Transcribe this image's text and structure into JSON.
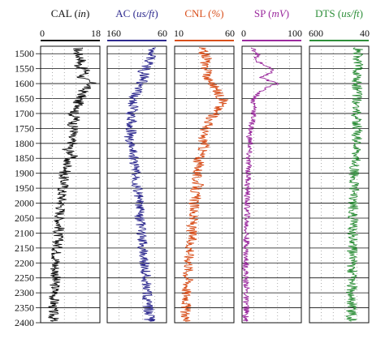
{
  "chart_data": {
    "type": "line",
    "y_axis": {
      "range": [
        2400,
        1475
      ],
      "ticks": [
        1500,
        1550,
        1600,
        1650,
        1700,
        1750,
        1800,
        1850,
        1900,
        1950,
        2000,
        2050,
        2100,
        2150,
        2200,
        2250,
        2300,
        2350,
        2400
      ],
      "grid": true
    },
    "tracks": [
      {
        "title": "CAL",
        "unit": "in",
        "color": "#111111",
        "scale_left": "0",
        "scale_right": "18",
        "left_value": 0,
        "right_value": 18
      },
      {
        "title": "AC",
        "unit": "us/ft",
        "color": "#2e2a8f",
        "scale_left": "160",
        "scale_right": "60",
        "left_value": 160,
        "right_value": 60
      },
      {
        "title": "CNL",
        "unit": "%",
        "color": "#d94f1b",
        "scale_left": "10",
        "scale_right": "60",
        "left_value": 10,
        "right_value": 60
      },
      {
        "title": "SP",
        "unit": "mV",
        "color": "#9b2a9e",
        "scale_left": "0",
        "scale_right": "100",
        "left_value": 0,
        "right_value": 100
      },
      {
        "title": "DTS",
        "unit": "us/ft",
        "color": "#2e8f3a",
        "scale_left": "600",
        "scale_right": "40",
        "left_value": 600,
        "right_value": 40
      }
    ],
    "curves": {
      "CAL": [
        [
          1480,
          11.4
        ],
        [
          1500,
          11.2
        ],
        [
          1520,
          12.6
        ],
        [
          1540,
          11.6
        ],
        [
          1560,
          14.1
        ],
        [
          1580,
          12.2
        ],
        [
          1600,
          15.6
        ],
        [
          1620,
          13.1
        ],
        [
          1640,
          12.5
        ],
        [
          1660,
          11.3
        ],
        [
          1680,
          12.0
        ],
        [
          1700,
          9.8
        ],
        [
          1720,
          10.7
        ],
        [
          1740,
          9.6
        ],
        [
          1760,
          10.3
        ],
        [
          1780,
          8.9
        ],
        [
          1800,
          9.8
        ],
        [
          1820,
          8.2
        ],
        [
          1840,
          9.9
        ],
        [
          1860,
          7.8
        ],
        [
          1880,
          8.4
        ],
        [
          1900,
          7.1
        ],
        [
          1920,
          6.9
        ],
        [
          1940,
          7.2
        ],
        [
          1960,
          6.4
        ],
        [
          1980,
          6.6
        ],
        [
          2000,
          6.2
        ],
        [
          2020,
          6.1
        ],
        [
          2040,
          5.9
        ],
        [
          2060,
          5.7
        ],
        [
          2080,
          5.8
        ],
        [
          2100,
          5.3
        ],
        [
          2120,
          5.4
        ],
        [
          2140,
          5.1
        ],
        [
          2160,
          4.9
        ],
        [
          2180,
          4.8
        ],
        [
          2200,
          4.6
        ],
        [
          2220,
          4.5
        ],
        [
          2240,
          4.7
        ],
        [
          2260,
          4.3
        ],
        [
          2280,
          4.4
        ],
        [
          2300,
          4.2
        ],
        [
          2320,
          4.1
        ],
        [
          2340,
          4.0
        ],
        [
          2360,
          3.7
        ],
        [
          2380,
          3.9
        ],
        [
          2395,
          3.8
        ]
      ],
      "AC": [
        [
          1480,
          85
        ],
        [
          1500,
          82
        ],
        [
          1520,
          88
        ],
        [
          1540,
          92
        ],
        [
          1560,
          100
        ],
        [
          1580,
          95
        ],
        [
          1600,
          105
        ],
        [
          1620,
          110
        ],
        [
          1640,
          113
        ],
        [
          1660,
          118
        ],
        [
          1680,
          115
        ],
        [
          1700,
          120
        ],
        [
          1720,
          118
        ],
        [
          1740,
          122
        ],
        [
          1760,
          119
        ],
        [
          1780,
          124
        ],
        [
          1800,
          121
        ],
        [
          1820,
          118
        ],
        [
          1840,
          116
        ],
        [
          1860,
          115
        ],
        [
          1880,
          113
        ],
        [
          1900,
          112
        ],
        [
          1920,
          110
        ],
        [
          1940,
          111
        ],
        [
          1960,
          109
        ],
        [
          1980,
          108
        ],
        [
          2000,
          107
        ],
        [
          2020,
          106
        ],
        [
          2040,
          105
        ],
        [
          2060,
          104
        ],
        [
          2080,
          103
        ],
        [
          2100,
          102
        ],
        [
          2120,
          101
        ],
        [
          2140,
          100
        ],
        [
          2160,
          99
        ],
        [
          2180,
          98
        ],
        [
          2200,
          97
        ],
        [
          2220,
          96
        ],
        [
          2240,
          95
        ],
        [
          2260,
          95
        ],
        [
          2280,
          94
        ],
        [
          2300,
          93
        ],
        [
          2320,
          92
        ],
        [
          2340,
          91
        ],
        [
          2360,
          90
        ],
        [
          2380,
          89
        ],
        [
          2395,
          88
        ]
      ],
      "CNL": [
        [
          1480,
          32
        ],
        [
          1500,
          35
        ],
        [
          1520,
          38
        ],
        [
          1540,
          34
        ],
        [
          1560,
          40
        ],
        [
          1580,
          37
        ],
        [
          1600,
          42
        ],
        [
          1620,
          45
        ],
        [
          1640,
          48
        ],
        [
          1660,
          52
        ],
        [
          1680,
          47
        ],
        [
          1700,
          44
        ],
        [
          1720,
          40
        ],
        [
          1740,
          38
        ],
        [
          1760,
          35
        ],
        [
          1780,
          33
        ],
        [
          1800,
          36
        ],
        [
          1820,
          34
        ],
        [
          1840,
          32
        ],
        [
          1860,
          30
        ],
        [
          1880,
          31
        ],
        [
          1900,
          29
        ],
        [
          1920,
          28
        ],
        [
          1940,
          30
        ],
        [
          1960,
          27
        ],
        [
          1980,
          28
        ],
        [
          2000,
          26
        ],
        [
          2020,
          27
        ],
        [
          2040,
          25
        ],
        [
          2060,
          26
        ],
        [
          2080,
          24
        ],
        [
          2100,
          25
        ],
        [
          2120,
          24
        ],
        [
          2140,
          23
        ],
        [
          2160,
          24
        ],
        [
          2180,
          22
        ],
        [
          2200,
          23
        ],
        [
          2220,
          22
        ],
        [
          2240,
          21
        ],
        [
          2260,
          22
        ],
        [
          2280,
          21
        ],
        [
          2300,
          20
        ],
        [
          2320,
          21
        ],
        [
          2340,
          20
        ],
        [
          2360,
          19
        ],
        [
          2380,
          20
        ],
        [
          2395,
          19
        ]
      ],
      "SP": [
        [
          1480,
          15
        ],
        [
          1500,
          28
        ],
        [
          1520,
          20
        ],
        [
          1540,
          40
        ],
        [
          1560,
          52
        ],
        [
          1580,
          30
        ],
        [
          1600,
          60
        ],
        [
          1620,
          35
        ],
        [
          1640,
          25
        ],
        [
          1660,
          18
        ],
        [
          1680,
          22
        ],
        [
          1700,
          20
        ],
        [
          1720,
          18
        ],
        [
          1740,
          16
        ],
        [
          1760,
          14
        ],
        [
          1780,
          12
        ],
        [
          1800,
          14
        ],
        [
          1820,
          12
        ],
        [
          1840,
          11
        ],
        [
          1860,
          10
        ],
        [
          1880,
          12
        ],
        [
          1900,
          10
        ],
        [
          1920,
          11
        ],
        [
          1940,
          9
        ],
        [
          1960,
          10
        ],
        [
          1980,
          8
        ],
        [
          2000,
          9
        ],
        [
          2020,
          8
        ],
        [
          2040,
          9
        ],
        [
          2060,
          8
        ],
        [
          2080,
          7
        ],
        [
          2100,
          8
        ],
        [
          2120,
          7
        ],
        [
          2140,
          8
        ],
        [
          2160,
          7
        ],
        [
          2180,
          6
        ],
        [
          2200,
          7
        ],
        [
          2220,
          6
        ],
        [
          2240,
          7
        ],
        [
          2260,
          6
        ],
        [
          2280,
          8
        ],
        [
          2300,
          7
        ],
        [
          2320,
          6
        ],
        [
          2340,
          8
        ],
        [
          2360,
          7
        ],
        [
          2380,
          6
        ],
        [
          2395,
          7
        ]
      ],
      "DTS": [
        [
          1480,
          140
        ],
        [
          1500,
          145
        ],
        [
          1520,
          150
        ],
        [
          1540,
          135
        ],
        [
          1560,
          140
        ],
        [
          1580,
          150
        ],
        [
          1600,
          155
        ],
        [
          1620,
          145
        ],
        [
          1640,
          150
        ],
        [
          1660,
          160
        ],
        [
          1680,
          150
        ],
        [
          1700,
          155
        ],
        [
          1720,
          152
        ],
        [
          1740,
          158
        ],
        [
          1760,
          150
        ],
        [
          1780,
          155
        ],
        [
          1800,
          160
        ],
        [
          1820,
          165
        ],
        [
          1840,
          160
        ],
        [
          1860,
          168
        ],
        [
          1880,
          170
        ],
        [
          1900,
          175
        ],
        [
          1920,
          172
        ],
        [
          1940,
          180
        ],
        [
          1960,
          178
        ],
        [
          1980,
          185
        ],
        [
          2000,
          182
        ],
        [
          2020,
          188
        ],
        [
          2040,
          186
        ],
        [
          2060,
          190
        ],
        [
          2080,
          188
        ],
        [
          2100,
          192
        ],
        [
          2120,
          190
        ],
        [
          2140,
          195
        ],
        [
          2160,
          193
        ],
        [
          2180,
          196
        ],
        [
          2200,
          195
        ],
        [
          2220,
          198
        ],
        [
          2240,
          196
        ],
        [
          2260,
          200
        ],
        [
          2280,
          198
        ],
        [
          2300,
          202
        ],
        [
          2320,
          200
        ],
        [
          2340,
          204
        ],
        [
          2360,
          202
        ],
        [
          2380,
          206
        ],
        [
          2395,
          205
        ]
      ]
    }
  }
}
